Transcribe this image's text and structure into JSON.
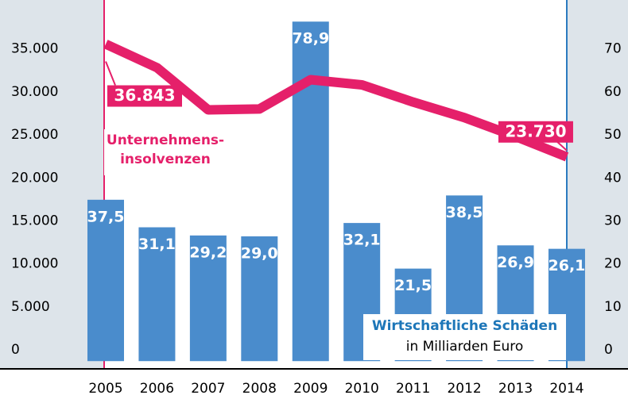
{
  "chart_data": {
    "type": "bar-line",
    "categories": [
      "2005",
      "2006",
      "2007",
      "2008",
      "2009",
      "2010",
      "2011",
      "2012",
      "2013",
      "2014"
    ],
    "series": [
      {
        "name": "Wirtschaftliche Schäden",
        "color": "#4a8ccc",
        "axis": "y2",
        "values": [
          37.5,
          31.1,
          29.2,
          29.0,
          78.9,
          32.1,
          21.5,
          38.5,
          26.9,
          26.1
        ],
        "value_labels": [
          "37,5",
          "31,1",
          "29,2",
          "29,0",
          "78,9",
          "32,1",
          "21,5",
          "38,5",
          "26,9",
          "26,1"
        ]
      },
      {
        "name": "Unternehmens-\ninsolvenzen",
        "color": "#e5206a",
        "axis": "y",
        "values": [
          36843,
          34100,
          29200,
          29300,
          32700,
          32100,
          30100,
          28300,
          26100,
          23730
        ],
        "value_labels": [
          "36.843",
          null,
          null,
          null,
          null,
          null,
          null,
          null,
          null,
          "23.730"
        ]
      }
    ],
    "subtitle": "in Milliarden Euro",
    "ylim": [
      -900,
      41500
    ],
    "yticks": [
      0,
      {
        "value": 5000,
        "label": "5.000"
      },
      {
        "value": 10000,
        "label": "10.000"
      },
      {
        "value": 15000,
        "label": "15.000"
      },
      {
        "value": 20000,
        "label": "20.000"
      },
      {
        "value": 25000,
        "label": "25.000"
      },
      {
        "value": 30000,
        "label": "30.000"
      },
      {
        "value": 35000,
        "label": "35.000"
      }
    ],
    "y2lim": [
      -1.8,
      83
    ],
    "y2ticks": [
      0,
      10,
      20,
      30,
      40,
      50,
      60,
      70
    ],
    "grid": false
  }
}
